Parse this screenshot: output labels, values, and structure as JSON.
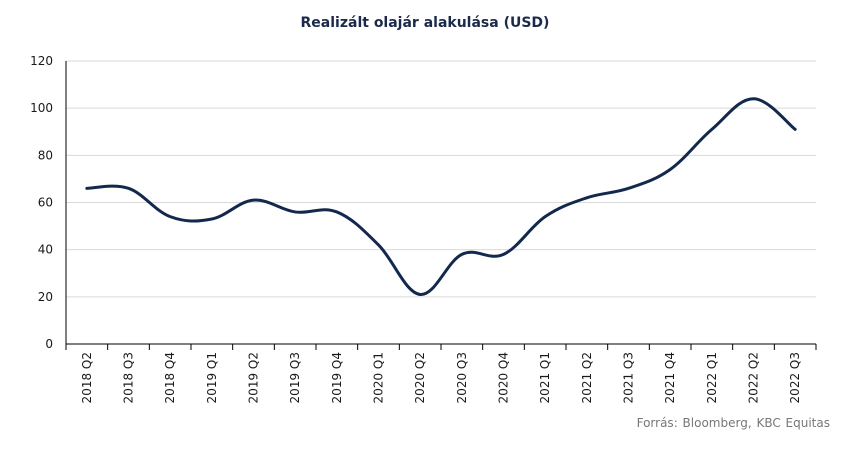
{
  "chart_data": {
    "type": "line",
    "title": "Realizált olajár alakulása (USD)",
    "source": "Forrás: Bloomberg, KBC Equitas",
    "categories": [
      "2018 Q2",
      "2018 Q3",
      "2018 Q4",
      "2019 Q1",
      "2019 Q2",
      "2019 Q3",
      "2019 Q4",
      "2020 Q1",
      "2020 Q2",
      "2020 Q3",
      "2020 Q4",
      "2021 Q1",
      "2021 Q2",
      "2021 Q3",
      "2021 Q4",
      "2022 Q1",
      "2022 Q2",
      "2022 Q3"
    ],
    "series": [
      {
        "values": [
          66,
          66,
          54,
          53,
          61,
          56,
          56,
          42,
          21,
          38,
          38,
          54,
          62,
          66,
          74,
          91,
          104,
          91
        ]
      }
    ],
    "ylim": [
      0,
      120
    ],
    "yticks": [
      0,
      20,
      40,
      60,
      80,
      100,
      120
    ],
    "grid": true,
    "line_color": "#13284d",
    "grid_color": "#d9d9d9"
  }
}
